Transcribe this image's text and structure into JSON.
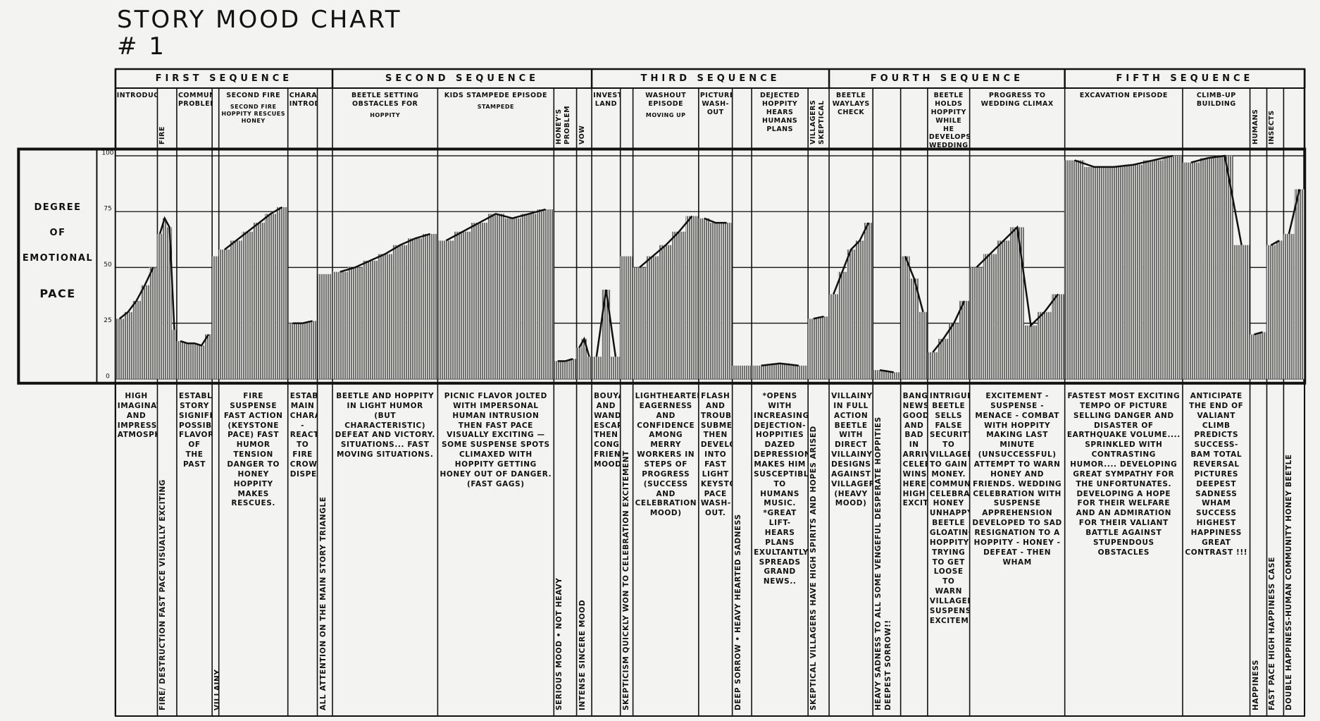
{
  "chart_data": {
    "type": "area",
    "title": "STORY MOOD CHART",
    "subtitle": "# 1",
    "y_label": [
      "DEGREE",
      "OF",
      "EMOTIONAL",
      "PACE"
    ],
    "ylim": [
      0,
      100
    ],
    "yticks": [
      0,
      25,
      50,
      75,
      100
    ],
    "grid": true,
    "color": "#111111",
    "sequences": [
      {
        "name": "FIRST SEQUENCE",
        "episodes": [
          {
            "label": "INTRODUCTION",
            "sublabel": null,
            "values": [
              27,
              30,
              35,
              42,
              50
            ],
            "description": "HIGH IMAGINATION AND IMPRESSIVE ATMOSPHERE"
          },
          {
            "label": "FIRE",
            "sublabel": null,
            "values": [
              65,
              72,
              68,
              22
            ],
            "description": "FIRE/ DESTRUCTION FAST PACE VISUALLY EXCITING"
          },
          {
            "label": "COMMUNITY PROBLEMS",
            "sublabel": null,
            "values": [
              17,
              16,
              16,
              15,
              20
            ],
            "description": "ESTABLISHING STORY SIGNIFICANCE...HUMOR POSSIBLY FLAVOR OF THE PAST"
          },
          {
            "label": null,
            "sublabel": null,
            "values": [
              55
            ],
            "description": "VILLAINY"
          },
          {
            "label": "SECOND FIRE",
            "sublabel": "SECOND FIRE HOPPITY RESCUES HONEY",
            "values": [
              58,
              62,
              66,
              70,
              74,
              77
            ],
            "description": "FIRE SUSPENSE FAST ACTION (KEYSTONE PACE) FAST HUMOR TENSION DANGER TO HONEY HOPPITY MAKES RESCUES."
          },
          {
            "label": "CHARACTERS INTRODUCED",
            "sublabel": null,
            "values": [
              25,
              25,
              26
            ],
            "description": "ESTABLISHING MAIN CHARACTERS - REACTION TO FIRE CROWD DISPERSING"
          },
          {
            "label": null,
            "sublabel": null,
            "values": [
              47
            ],
            "description": "ALL ATTENTION ON THE MAIN STORY TRIANGLE"
          }
        ]
      },
      {
        "name": "SECOND SEQUENCE",
        "episodes": [
          {
            "label": "BEETLE SETTING OBSTACLES FOR",
            "sublabel": "HOPPITY",
            "values": [
              48,
              50,
              53,
              56,
              60,
              63,
              65
            ],
            "description": "BEETLE AND HOPPITY IN LIGHT HUMOR (BUT CHARACTERISTIC) DEFEAT AND VICTORY. SITUATIONS... FAST MOVING SITUATIONS."
          },
          {
            "label": "KIDS STAMPEDE EPISODE",
            "sublabel": "STAMPEDE",
            "values": [
              62,
              66,
              70,
              74,
              72,
              74,
              76
            ],
            "description": "PICNIC FLAVOR JOLTED WITH IMPERSONAL HUMAN INTRUSION THEN FAST PACE VISUALLY EXCITING — SOME SUSPENSE SPOTS CLIMAXED WITH HOPPITY GETTING HONEY OUT OF DANGER. (FAST GAGS)"
          },
          {
            "label": "HONEY'S PROBLEM",
            "sublabel": null,
            "values": [
              8,
              8,
              9
            ],
            "description": "SERIOUS MOOD • NOT HEAVY"
          },
          {
            "label": "VOW",
            "sublabel": null,
            "values": [
              14,
              18,
              10
            ],
            "description": "INTENSE SINCERE MOOD"
          }
        ]
      },
      {
        "name": "THIRD SEQUENCE",
        "episodes": [
          {
            "label": "INVESTIGATE LAND",
            "sublabel": null,
            "values": [
              10,
              40,
              10
            ],
            "description": "BOUYANT AND WANDERS ESCAPE THEN CONGENIAL FRIENDLY MOOD"
          },
          {
            "label": null,
            "sublabel": null,
            "values": [
              55
            ],
            "description": "SKEPTICISM QUICKLY WON TO CELEBRATION EXCITEMENT"
          },
          {
            "label": "WASHOUT EPISODE",
            "sublabel": "MOVING UP",
            "values": [
              50,
              55,
              60,
              66,
              73
            ],
            "description": "LIGHTHEARTED EAGERNESS AND CONFIDENCE AMONG MERRY WORKERS IN STEPS OF PROGRESS (SUCCESS AND CELEBRATION MOOD)"
          },
          {
            "label": "PICTURE WASH-OUT",
            "sublabel": null,
            "values": [
              72,
              70,
              70
            ],
            "description": "FLASH AND TROUBLE SUBMERGES THEN DEVELOPING INTO FAST LIGHT KEYSTONE PACE WASH-OUT."
          },
          {
            "label": null,
            "sublabel": null,
            "values": [
              6
            ],
            "description": "DEEP SORROW • HEAVY HEARTED SADNESS"
          },
          {
            "label": "DEJECTED HOPPITY HEARS HUMANS PLANS",
            "sublabel": null,
            "values": [
              6,
              7,
              6
            ],
            "description": "*OPENS WITH INCREASING DEJECTION-HOPPITIES DAZED DEPRESSION MAKES HIM SUSCEPTIBLE TO HUMANS MUSIC. *GREAT LIFT- HEARS PLANS EXULTANTLY SPREADS GRAND NEWS.."
          },
          {
            "label": "VILLAGERS SKEPTICAL",
            "sublabel": null,
            "values": [
              27,
              28
            ],
            "description": "SKEPTICAL VILLAGERS HAVE HIGH SPIRITS AND HOPES ARISED"
          }
        ]
      },
      {
        "name": "FOURTH SEQUENCE",
        "episodes": [
          {
            "label": "BEETLE WAYLAYS CHECK",
            "sublabel": null,
            "values": [
              38,
              48,
              58,
              62,
              70
            ],
            "description": "VILLAINY IN FULL ACTION BEETLE WITH DIRECT VILLAINY DESIGNS AGAINST VILLAGERS (HEAVY MOOD)"
          },
          {
            "label": null,
            "sublabel": null,
            "values": [
              4,
              3
            ],
            "description": "HEAVY SADNESS TO ALL SOME VENGEFUL DESPERATE HOPPITIES DEEPEST SORROW!!"
          },
          {
            "label": null,
            "sublabel": null,
            "values": [
              55,
              45,
              30
            ],
            "description": "BANG NEWS GOOD AND BAD IN ARRIVE CELEBRATE WINS HERE HIGH EXCITEMENT"
          },
          {
            "label": "BEETLE HOLDS HOPPITY WHILE HE DEVELOPS WEDDING DEAL",
            "sublabel": null,
            "values": [
              12,
              18,
              25,
              35
            ],
            "description": "INTRIGUE BEETLE SELLS FALSE SECURITY TO VILLAGERS TO GAIN MONEY. COMMUNITY CELEBRATION HONEY UNHAPPY BEETLE GLOATING HOPPITY TRYING TO GET LOOSE TO WARN VILLAGERS SUSPENSE EXCITEMENT"
          },
          {
            "label": "PROGRESS TO WEDDING CLIMAX",
            "sublabel": null,
            "values": [
              50,
              56,
              62,
              68,
              24,
              30,
              38
            ],
            "description": "EXCITEMENT - SUSPENSE - MENACE - COMBAT WITH HOPPITY MAKING LAST MINUTE (UNSUCCESSFUL) ATTEMPT TO WARN HONEY AND FRIENDS. WEDDING CELEBRATION WITH SUSPENSE APPREHENSION DEVELOPED TO SAD RESIGNATION TO A HOPPITY - HONEY - DEFEAT - THEN WHAM"
          }
        ]
      },
      {
        "name": "FIFTH SEQUENCE",
        "episodes": [
          {
            "label": "EXCAVATION EPISODE",
            "sublabel": null,
            "values": [
              98,
              95,
              95,
              96,
              98,
              100
            ],
            "description": "FASTEST MOST EXCITING TEMPO OF PICTURE SELLING DANGER AND DISASTER OF EARTHQUAKE VOLUME.... SPRINKLED WITH CONTRASTING HUMOR.... DEVELOPING GREAT SYMPATHY FOR THE UNFORTUNATES. DEVELOPING A HOPE FOR THEIR WELFARE AND AN ADMIRATION FOR THEIR VALIANT BATTLE AGAINST STUPENDOUS OBSTACLES"
          },
          {
            "label": "CLIMB-UP BUILDING",
            "sublabel": null,
            "values": [
              97,
              99,
              100,
              60
            ],
            "description": "ANTICIPATE THE END OF VALIANT CLIMB PREDICTS SUCCESS- BAM TOTAL REVERSAL PICTURES DEEPEST SADNESS WHAM SUCCESS HIGHEST HAPPINESS GREAT CONTRAST !!!"
          },
          {
            "label": "HUMANS",
            "sublabel": null,
            "values": [
              20,
              21
            ],
            "description": "HAPPINESS"
          },
          {
            "label": "INSECTS",
            "sublabel": null,
            "values": [
              60,
              62
            ],
            "description": "FAST PACE HIGH HAPPINESS CASE"
          },
          {
            "label": null,
            "sublabel": null,
            "values": [
              65,
              85
            ],
            "description": "DOUBLE HAPPINESS-HUMAN COMMUNITY HONEY BEETLE"
          }
        ]
      }
    ]
  }
}
